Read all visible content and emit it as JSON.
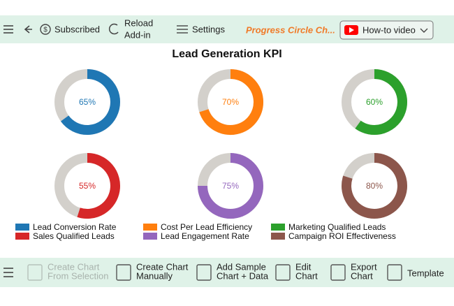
{
  "toolbar": {
    "subscribed": "Subscribed",
    "reload": [
      "Reload",
      "Add-in"
    ],
    "settings": "Settings",
    "app_title": "Progress Circle Ch...",
    "how_to": "How-to video"
  },
  "chart_data": {
    "type": "donut",
    "title": "Lead Generation KPI",
    "categories": [
      "Lead Conversion Rate",
      "Cost Per Lead Efficiency",
      "Marketing Qualified Leads",
      "Sales Qualified Leads",
      "Lead Engagement Rate",
      "Campaign ROI Effectiveness"
    ],
    "values": [
      65,
      70,
      60,
      55,
      75,
      80
    ],
    "value_labels": [
      "65%",
      "70%",
      "60%",
      "55%",
      "75%",
      "80%"
    ],
    "colors": [
      "#1f77b4",
      "#ff7f0e",
      "#2ca02c",
      "#d62728",
      "#9467bd",
      "#8c564b"
    ],
    "track_color": "#d3d0cb",
    "max": 100
  },
  "bottom_toolbar": [
    [
      "Create Chart",
      "From Selection"
    ],
    [
      "Create Chart",
      "Manually"
    ],
    [
      "Add Sample",
      "Chart + Data"
    ],
    [
      "Edit",
      "Chart"
    ],
    [
      "Export",
      "Chart"
    ],
    [
      "Template"
    ]
  ]
}
